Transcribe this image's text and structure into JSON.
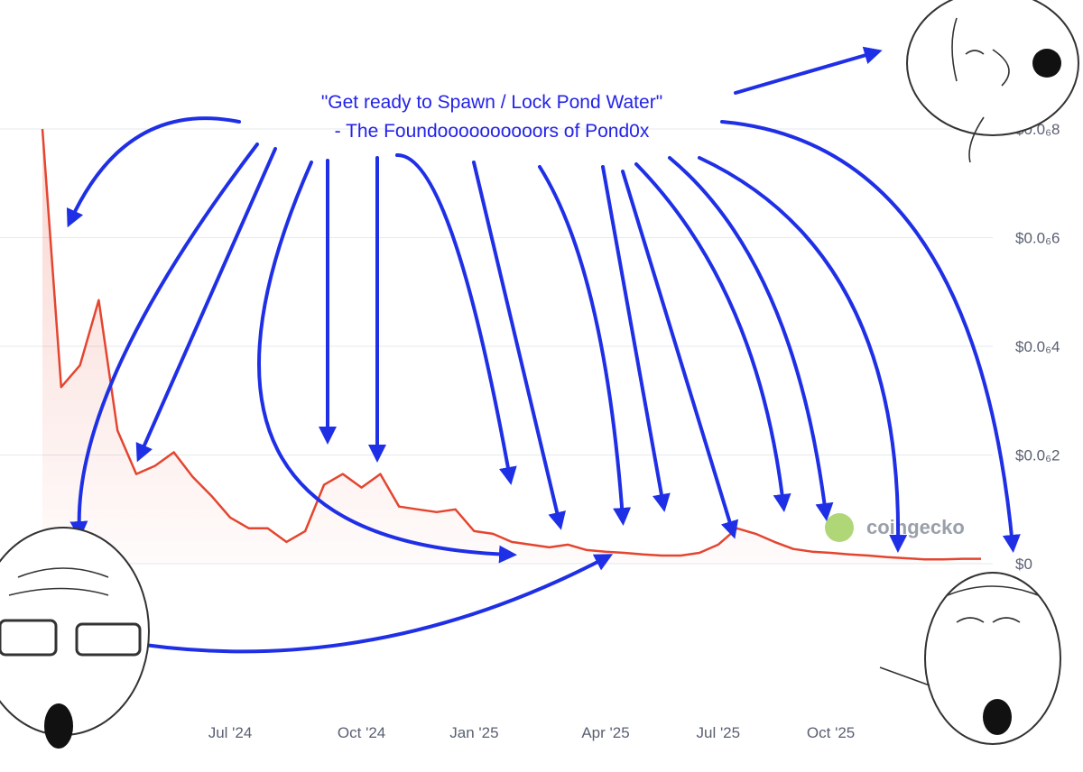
{
  "chart_data": {
    "type": "line",
    "categories": [
      null,
      null,
      null,
      null,
      null,
      null,
      null,
      null,
      null,
      null,
      "Jul '24",
      null,
      null,
      null,
      null,
      null,
      null,
      "Oct '24",
      null,
      null,
      null,
      null,
      null,
      "Jan '25",
      null,
      null,
      null,
      null,
      null,
      null,
      "Apr '25",
      null,
      null,
      null,
      null,
      null,
      "Jul '25",
      null,
      null,
      null,
      null,
      null,
      "Oct '25",
      null,
      null,
      null,
      null,
      null,
      null,
      null,
      null
    ],
    "series": [
      {
        "color": "#e4452f",
        "values": [
          8e-07,
          3.25e-07,
          3.65e-07,
          4.85e-07,
          2.45e-07,
          1.65e-07,
          1.8e-07,
          2.05e-07,
          1.6e-07,
          1.25e-07,
          8.5e-08,
          6.5e-08,
          6.5e-08,
          4e-08,
          6e-08,
          1.45e-07,
          1.65e-07,
          1.4e-07,
          1.65e-07,
          1.05e-07,
          1e-07,
          9.5e-08,
          1e-07,
          6e-08,
          5.5e-08,
          4e-08,
          3.5e-08,
          3e-08,
          3.5e-08,
          2.5e-08,
          2.2e-08,
          2e-08,
          1.7e-08,
          1.5e-08,
          1.5e-08,
          2e-08,
          3.5e-08,
          6.5e-08,
          5.5e-08,
          4e-08,
          2.7e-08,
          2.2e-08,
          2e-08,
          1.7e-08,
          1.5e-08,
          1.2e-08,
          1e-08,
          8e-09,
          8e-09,
          9e-09,
          9e-09
        ]
      }
    ],
    "ylim": [
      0,
      8e-07
    ],
    "yticks": [
      {
        "value": 0,
        "label": "$0"
      },
      {
        "value": 2e-07,
        "label": "$0.0₆2"
      },
      {
        "value": 4e-07,
        "label": "$0.0₆4"
      },
      {
        "value": 6e-07,
        "label": "$0.0₆6"
      },
      {
        "value": 8e-07,
        "label": "$0.0₆8"
      }
    ],
    "grid": true,
    "annotations": [
      "\"Get ready to Spawn / Lock Pond Water\"",
      "- The Foundoooooooooors of Pond0x"
    ],
    "watermark": "coingecko"
  }
}
